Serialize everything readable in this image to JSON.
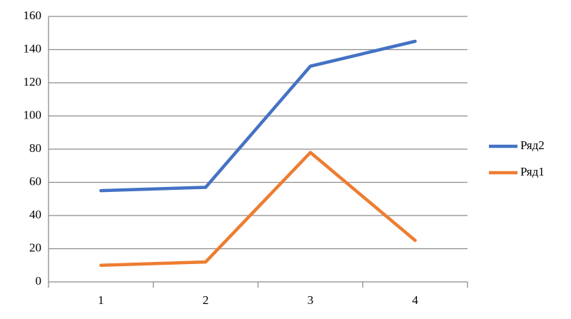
{
  "chart_data": {
    "type": "line",
    "categories": [
      "1",
      "2",
      "3",
      "4"
    ],
    "series": [
      {
        "name": "Ряд2",
        "color": "#4472c4",
        "values": [
          55,
          57,
          130,
          145
        ]
      },
      {
        "name": "Ряд1",
        "color": "#ed7d31",
        "values": [
          10,
          12,
          78,
          25
        ]
      }
    ],
    "ylim": [
      0,
      160
    ],
    "yticks": [
      0,
      20,
      40,
      60,
      80,
      100,
      120,
      140,
      160
    ],
    "grid": true,
    "legend": "right"
  }
}
